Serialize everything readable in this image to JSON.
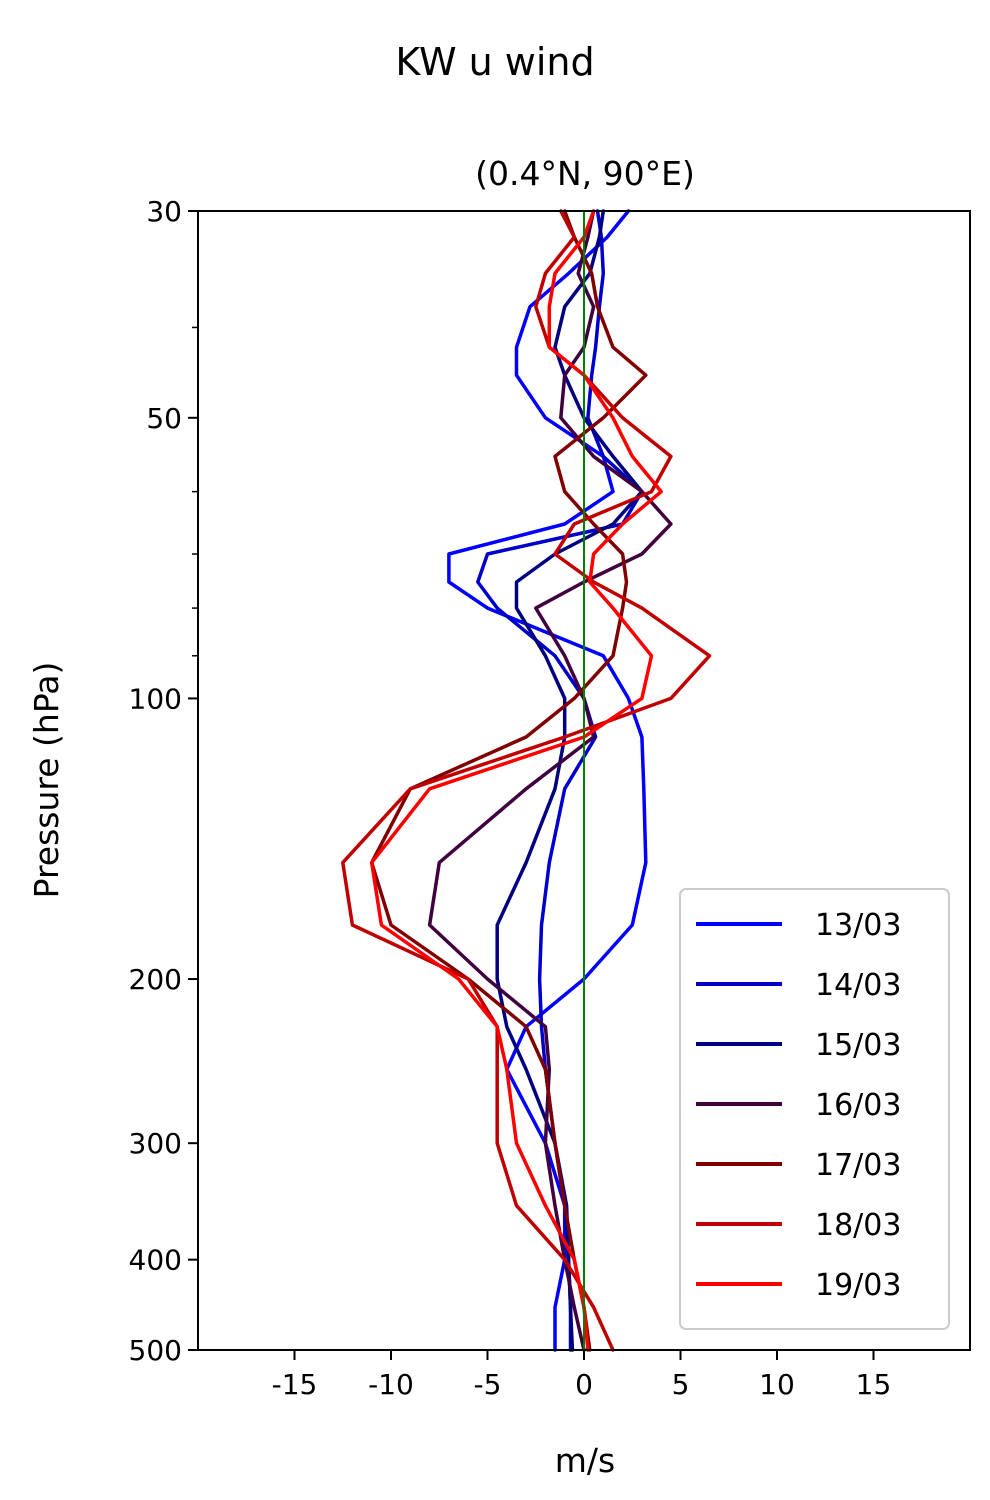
{
  "chart_data": {
    "type": "line",
    "title": "KW u wind",
    "subtitle": "(0.4°N, 90°E)",
    "xlabel": "m/s",
    "ylabel": "Pressure (hPa)",
    "xlim": [
      -20,
      20
    ],
    "ylim": [
      500,
      30
    ],
    "y_scale": "log",
    "x_ticks": [
      -15,
      -10,
      -5,
      0,
      5,
      10,
      15
    ],
    "x_tick_labels": [
      "-15",
      "-10",
      "-5",
      "0",
      "5",
      "10",
      "15"
    ],
    "y_ticks": [
      30,
      50,
      100,
      200,
      300,
      400,
      500
    ],
    "y_tick_labels": [
      "30",
      "50",
      "100",
      "200",
      "300",
      "400",
      "500"
    ],
    "y_minor_ticks": [
      40,
      60,
      70,
      80,
      90
    ],
    "reference_line": {
      "x": 0,
      "color": "#008000"
    },
    "legend_position": "lower-right",
    "pressure_levels": [
      30,
      32,
      35,
      38,
      42,
      45,
      50,
      55,
      60,
      65,
      70,
      75,
      80,
      90,
      100,
      110,
      125,
      150,
      175,
      200,
      225,
      250,
      300,
      350,
      400,
      450,
      500
    ],
    "series": [
      {
        "name": "13/03",
        "color": "#0000ff",
        "values": [
          2.3,
          1.2,
          -0.8,
          -2.8,
          -3.5,
          -3.5,
          -2.0,
          1.0,
          1.5,
          -1.0,
          -7.0,
          -7.0,
          -5.0,
          1.0,
          2.3,
          3.0,
          3.1,
          3.2,
          2.5,
          0.0,
          -3.0,
          -4.0,
          -2.0,
          -1.0,
          -1.0,
          -1.5,
          -1.5
        ]
      },
      {
        "name": "14/03",
        "color": "#0000cc",
        "values": [
          0.7,
          0.9,
          1.0,
          0.8,
          0.6,
          0.4,
          0.2,
          1.0,
          3.0,
          2.0,
          -5.0,
          -5.5,
          -4.5,
          -1.5,
          0.0,
          0.6,
          -1.0,
          -1.8,
          -2.2,
          -2.3,
          -2.2,
          -2.0,
          -1.5,
          -1.0,
          -0.8,
          -0.7,
          -0.7
        ]
      },
      {
        "name": "15/03",
        "color": "#000080",
        "values": [
          1.0,
          0.8,
          0.3,
          -1.0,
          -1.5,
          -1.0,
          0.0,
          1.5,
          3.0,
          1.5,
          -1.5,
          -3.5,
          -3.5,
          -2.0,
          -1.0,
          -1.0,
          -1.5,
          -3.0,
          -4.5,
          -4.5,
          -4.0,
          -3.0,
          -1.5,
          -0.9,
          -0.8,
          -0.7,
          -0.6
        ]
      },
      {
        "name": "16/03",
        "color": "#400040",
        "values": [
          0.5,
          0.2,
          -0.3,
          0.5,
          0.0,
          -1.0,
          -1.2,
          0.5,
          3.0,
          4.5,
          3.0,
          0.0,
          -2.5,
          -1.0,
          0.0,
          0.5,
          -3.0,
          -7.5,
          -8.0,
          -5.0,
          -2.0,
          -1.8,
          -2.0,
          -1.5,
          -1.0,
          -0.5,
          0.0
        ]
      },
      {
        "name": "17/03",
        "color": "#800000",
        "values": [
          -1.0,
          -0.5,
          0.4,
          0.7,
          1.5,
          3.2,
          1.0,
          -1.5,
          -1.0,
          0.5,
          2.0,
          2.2,
          2.0,
          1.5,
          -0.5,
          -3.0,
          -9.0,
          -11.0,
          -10.0,
          -6.0,
          -3.0,
          -2.0,
          -1.5,
          -1.0,
          -0.5,
          0.0,
          0.3
        ]
      },
      {
        "name": "18/03",
        "color": "#c00000",
        "values": [
          -1.2,
          -0.5,
          -2.0,
          -2.5,
          -1.8,
          0.0,
          2.0,
          4.5,
          3.5,
          -0.5,
          -1.5,
          0.5,
          3.0,
          6.5,
          4.5,
          -1.0,
          -9.0,
          -12.5,
          -12.0,
          -6.0,
          -4.5,
          -4.5,
          -4.5,
          -3.5,
          -1.0,
          0.5,
          1.5
        ]
      },
      {
        "name": "19/03",
        "color": "#ff0000",
        "values": [
          0.5,
          0.0,
          -1.5,
          -1.8,
          -1.8,
          0.0,
          1.5,
          2.5,
          4.0,
          2.0,
          0.5,
          0.3,
          1.5,
          3.5,
          3.0,
          0.0,
          -8.0,
          -11.0,
          -10.5,
          -6.5,
          -4.5,
          -4.0,
          -3.5,
          -2.0,
          -0.5,
          0.0,
          0.2
        ]
      }
    ]
  }
}
